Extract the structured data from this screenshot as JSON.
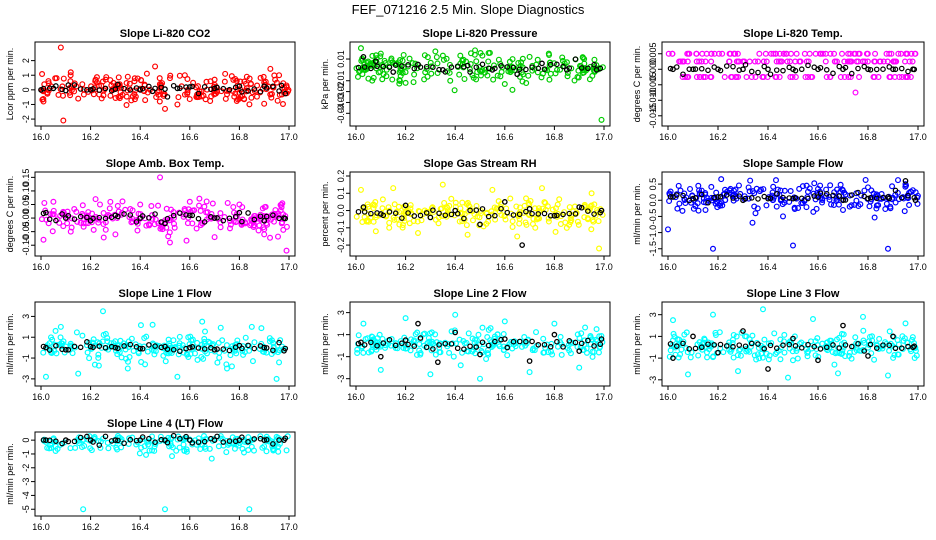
{
  "title": "FEF_071216  2.5 Min. Slope Diagnostics",
  "x_ticks": [
    "16.0",
    "16.2",
    "16.4",
    "16.6",
    "16.8",
    "17.0"
  ],
  "colors": {
    "red": "#ff0000",
    "green": "#00cc00",
    "magenta": "#ff00ff",
    "yellow": "#ffff00",
    "blue": "#0000ff",
    "cyan": "#00ffff",
    "black": "#000000"
  },
  "chart_data": [
    {
      "type": "scatter",
      "title": "Slope Li-820 CO2",
      "ylabel": "Lcor ppm per min.",
      "y_ticks": [
        "-2",
        "-1",
        "0",
        "1",
        "2"
      ],
      "xlim": [
        16.0,
        17.0
      ],
      "ylim": [
        -2.2,
        3.0
      ],
      "color": "red",
      "series": [
        {
          "values_x": [
            16.0,
            16.05,
            16.1,
            16.2,
            16.3,
            16.4,
            16.45,
            16.5,
            16.55,
            16.6,
            16.7,
            16.8,
            16.9,
            16.97
          ],
          "values_y": [
            0.0,
            0.1,
            -0.05,
            0.0,
            0.05,
            0.0,
            -0.1,
            0.05,
            0.1,
            0.2,
            0.1,
            0.25,
            0.25,
            0.3
          ]
        },
        {
          "values_x": [
            16.01,
            16.03,
            16.08,
            16.09,
            16.12,
            16.15,
            16.22,
            16.28,
            16.35,
            16.42,
            16.46,
            16.5,
            16.52,
            16.55,
            16.58,
            16.63,
            16.7,
            16.75,
            16.83,
            16.9,
            16.96,
            16.99
          ],
          "values_y": [
            -0.8,
            0.6,
            2.9,
            -2.1,
            1.2,
            -0.6,
            0.7,
            -0.4,
            0.9,
            -0.7,
            1.6,
            -1.3,
            0.8,
            -1.0,
            1.0,
            -0.5,
            0.7,
            -0.3,
            0.9,
            0.5,
            1.0,
            0.3
          ]
        }
      ]
    },
    {
      "type": "scatter",
      "title": "Slope Li-820 Pressure",
      "ylabel": "kPa per min.",
      "y_ticks": [
        "-0.04",
        "-0.03",
        "-0.02",
        "-0.01",
        "0.01"
      ],
      "xlim": [
        16.0,
        17.0
      ],
      "ylim": [
        -0.048,
        0.022
      ],
      "color": "green",
      "series": [
        {
          "values_x": [
            16.03,
            16.08,
            16.15,
            16.25,
            16.35,
            16.45,
            16.55,
            16.65,
            16.75,
            16.85,
            16.97
          ],
          "values_y": [
            0.012,
            0.008,
            -0.002,
            0.005,
            0.0,
            0.004,
            0.0,
            -0.004,
            0.006,
            0.0,
            0.0
          ]
        },
        {
          "values_x": [
            16.02,
            16.05,
            16.1,
            16.2,
            16.32,
            16.38,
            16.48,
            16.6,
            16.7,
            16.78,
            16.92,
            16.99
          ],
          "values_y": [
            0.02,
            -0.008,
            0.015,
            -0.012,
            0.017,
            -0.01,
            0.018,
            -0.013,
            0.012,
            -0.009,
            0.01,
            -0.046
          ]
        }
      ]
    },
    {
      "type": "scatter",
      "title": "Slope Li-820 Temp.",
      "ylabel": "degrees C per min.",
      "y_ticks": [
        "-0.015",
        "-0.010",
        "-0.005",
        "0.000",
        "0.005"
      ],
      "xlim": [
        16.0,
        17.0
      ],
      "ylim": [
        -0.017,
        0.0075
      ],
      "color": "magenta",
      "series": [
        {
          "values_x": [
            16.02,
            16.1,
            16.2,
            16.3,
            16.4,
            16.5,
            16.6,
            16.7,
            16.8,
            16.9,
            16.98
          ],
          "values_y": [
            0.0,
            0.0,
            0.0,
            0.0,
            0.0,
            0.0,
            0.0,
            0.0,
            0.0,
            0.0,
            0.0
          ]
        },
        {
          "values_x": [
            16.05,
            16.15,
            16.25,
            16.35,
            16.45,
            16.55,
            16.65,
            16.75,
            16.85,
            16.95
          ],
          "values_y": [
            0.0025,
            -0.0025,
            0.005,
            -0.0025,
            0.0025,
            -0.0025,
            0.005,
            -0.0075,
            0.0025,
            -0.0025
          ]
        }
      ]
    },
    {
      "type": "scatter",
      "title": "Slope Amb. Box Temp.",
      "ylabel": "degrees C per min.",
      "y_ticks": [
        "-0.10",
        "-0.05",
        "0.00",
        "0.05",
        "0.10",
        "0.15"
      ],
      "xlim": [
        16.0,
        17.0
      ],
      "ylim": [
        -0.125,
        0.155
      ],
      "color": "magenta",
      "series": [
        {
          "values_x": [
            16.02,
            16.1,
            16.2,
            16.3,
            16.4,
            16.5,
            16.6,
            16.7,
            16.8,
            16.9,
            16.98
          ],
          "values_y": [
            0.02,
            0.0,
            -0.01,
            0.01,
            0.0,
            -0.02,
            0.01,
            0.0,
            0.02,
            -0.01,
            0.0
          ]
        },
        {
          "values_x": [
            16.01,
            16.05,
            16.12,
            16.22,
            16.3,
            16.4,
            16.48,
            16.52,
            16.6,
            16.7,
            16.8,
            16.9,
            16.97,
            16.99
          ],
          "values_y": [
            -0.08,
            0.06,
            -0.05,
            0.07,
            -0.06,
            0.05,
            0.15,
            -0.09,
            0.06,
            -0.07,
            0.05,
            -0.06,
            0.04,
            -0.12
          ]
        }
      ]
    },
    {
      "type": "scatter",
      "title": "Slope Gas Stream RH",
      "ylabel": "percent per min.",
      "y_ticks": [
        "-0.2",
        "-0.1",
        "0.0",
        "0.1",
        "0.2"
      ],
      "xlim": [
        16.0,
        17.0
      ],
      "ylim": [
        -0.24,
        0.2
      ],
      "color": "yellow",
      "series": [
        {
          "values_x": [
            16.03,
            16.1,
            16.2,
            16.3,
            16.4,
            16.5,
            16.6,
            16.67,
            16.7,
            16.8,
            16.9,
            16.99
          ],
          "values_y": [
            0.02,
            -0.02,
            0.03,
            -0.04,
            0.0,
            -0.08,
            0.05,
            -0.2,
            0.01,
            -0.03,
            0.02,
            0.0
          ]
        },
        {
          "values_x": [
            16.02,
            16.08,
            16.15,
            16.25,
            16.35,
            16.45,
            16.55,
            16.65,
            16.75,
            16.85,
            16.95,
            16.98
          ],
          "values_y": [
            0.12,
            -0.12,
            0.13,
            -0.13,
            0.15,
            -0.14,
            0.12,
            -0.15,
            0.13,
            -0.1,
            0.1,
            -0.22
          ]
        }
      ]
    },
    {
      "type": "scatter",
      "title": "Slope Sample Flow",
      "ylabel": "ml/min per min.",
      "y_ticks": [
        "-1.5",
        "-1.0",
        "-0.5",
        "0.0",
        "0.5"
      ],
      "xlim": [
        16.0,
        17.0
      ],
      "ylim": [
        -1.6,
        0.75
      ],
      "color": "blue",
      "series": [
        {
          "values_x": [
            16.02,
            16.1,
            16.2,
            16.3,
            16.4,
            16.5,
            16.6,
            16.7,
            16.8,
            16.88,
            16.95,
            16.99
          ],
          "values_y": [
            0.1,
            0.05,
            0.1,
            0.0,
            0.05,
            0.05,
            0.1,
            0.0,
            0.05,
            0.1,
            0.6,
            0.0
          ]
        },
        {
          "values_x": [
            16.0,
            16.05,
            16.15,
            16.18,
            16.25,
            16.35,
            16.45,
            16.5,
            16.6,
            16.7,
            16.8,
            16.88,
            16.95
          ],
          "values_y": [
            -0.9,
            0.3,
            -0.3,
            -1.5,
            0.35,
            -0.4,
            0.3,
            -1.4,
            0.35,
            -0.3,
            0.4,
            -1.5,
            0.5
          ]
        }
      ]
    },
    {
      "type": "scatter",
      "title": "Slope Line 1 Flow",
      "ylabel": "ml/min per min.",
      "y_ticks": [
        "-3",
        "-1",
        "1",
        "3"
      ],
      "xlim": [
        16.0,
        17.0
      ],
      "ylim": [
        -3.3,
        4.0
      ],
      "color": "cyan",
      "series": [
        {
          "values_x": [
            16.02,
            16.1,
            16.2,
            16.3,
            16.4,
            16.5,
            16.6,
            16.7,
            16.8,
            16.9,
            16.98
          ],
          "values_y": [
            0.0,
            -0.2,
            0.1,
            0.0,
            -0.1,
            0.1,
            0.0,
            -0.2,
            0.2,
            0.0,
            -0.3
          ]
        },
        {
          "values_x": [
            16.02,
            16.08,
            16.15,
            16.25,
            16.35,
            16.45,
            16.55,
            16.65,
            16.75,
            16.85,
            16.95
          ],
          "values_y": [
            -2.8,
            2.0,
            -2.5,
            3.5,
            -2.0,
            2.2,
            -2.8,
            2.5,
            -2.0,
            2.0,
            -3.0
          ]
        }
      ]
    },
    {
      "type": "scatter",
      "title": "Slope Line 2 Flow",
      "ylabel": "ml/min per min.",
      "y_ticks": [
        "-3",
        "-1",
        "1",
        "3"
      ],
      "xlim": [
        16.0,
        17.0
      ],
      "ylim": [
        -3.3,
        3.6
      ],
      "color": "cyan",
      "series": [
        {
          "values_x": [
            16.02,
            16.1,
            16.2,
            16.25,
            16.33,
            16.4,
            16.5,
            16.6,
            16.7,
            16.8,
            16.9,
            16.99
          ],
          "values_y": [
            0.3,
            -1.0,
            0.5,
            2.0,
            -1.5,
            1.2,
            -0.8,
            0.6,
            -1.4,
            1.0,
            -0.5,
            0.6
          ]
        },
        {
          "values_x": [
            16.03,
            16.1,
            16.2,
            16.3,
            16.4,
            16.5,
            16.6,
            16.7,
            16.8,
            16.9,
            16.97
          ],
          "values_y": [
            2.0,
            -2.2,
            2.5,
            -2.6,
            2.8,
            -3.0,
            2.2,
            -2.4,
            2.0,
            -2.0,
            1.5
          ]
        }
      ]
    },
    {
      "type": "scatter",
      "title": "Slope Line 3 Flow",
      "ylabel": "ml/min per min.",
      "y_ticks": [
        "-3",
        "-1",
        "1",
        "3"
      ],
      "xlim": [
        16.0,
        17.0
      ],
      "ylim": [
        -3.2,
        3.8
      ],
      "color": "cyan",
      "series": [
        {
          "values_x": [
            16.02,
            16.1,
            16.2,
            16.3,
            16.4,
            16.5,
            16.6,
            16.7,
            16.8,
            16.9,
            16.98
          ],
          "values_y": [
            -1.0,
            1.0,
            -0.5,
            1.5,
            -2.0,
            0.8,
            -1.2,
            2.0,
            -0.8,
            1.0,
            0.0
          ]
        },
        {
          "values_x": [
            16.02,
            16.08,
            16.18,
            16.28,
            16.38,
            16.48,
            16.58,
            16.68,
            16.78,
            16.88,
            16.95
          ],
          "values_y": [
            2.5,
            -2.5,
            3.0,
            -2.2,
            3.5,
            -2.8,
            2.6,
            -2.4,
            2.8,
            -2.6,
            2.2
          ]
        }
      ]
    },
    {
      "type": "scatter",
      "title": "Slope Line 4 (LT) Flow",
      "ylabel": "ml/min per min.",
      "y_ticks": [
        "-5",
        "-4",
        "-3",
        "-2",
        "-1",
        "0"
      ],
      "xlim": [
        16.0,
        17.0
      ],
      "ylim": [
        -5.2,
        0.3
      ],
      "color": "cyan",
      "series": [
        {
          "values_x": [
            16.02,
            16.1,
            16.2,
            16.3,
            16.4,
            16.5,
            16.6,
            16.7,
            16.8,
            16.9,
            16.98
          ],
          "values_y": [
            0.0,
            0.0,
            0.0,
            0.0,
            0.0,
            0.0,
            0.0,
            0.0,
            0.0,
            0.0,
            0.0
          ]
        },
        {
          "values_x": [
            16.05,
            16.15,
            16.17,
            16.3,
            16.45,
            16.5,
            16.6,
            16.75,
            16.84,
            16.95
          ],
          "values_y": [
            0.05,
            -0.05,
            -5.0,
            0.05,
            -0.05,
            -5.0,
            0.05,
            -0.05,
            -5.0,
            0.05
          ]
        }
      ]
    }
  ]
}
